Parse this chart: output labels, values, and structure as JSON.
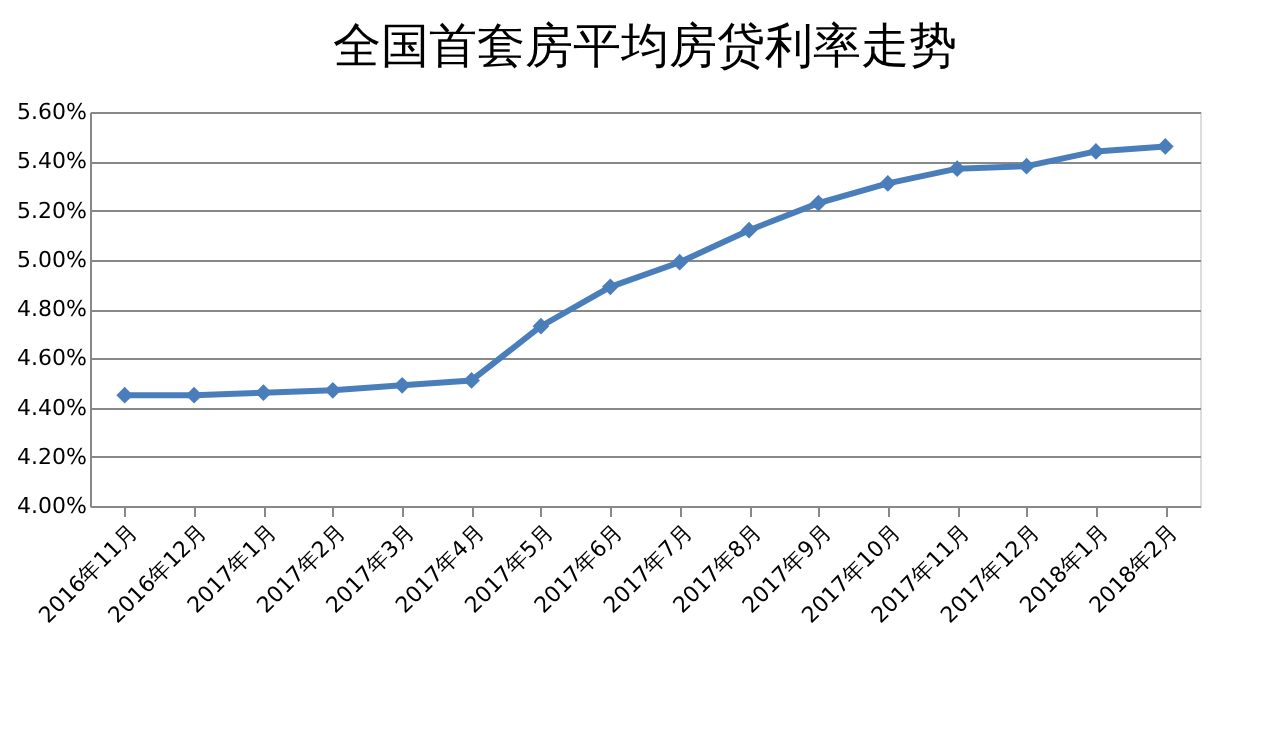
{
  "chart_data": {
    "type": "line",
    "title": "全国首套房平均房贷利率走势",
    "categories": [
      "2016年11月",
      "2016年12月",
      "2017年1月",
      "2017年2月",
      "2017年3月",
      "2017年4月",
      "2017年5月",
      "2017年6月",
      "2017年7月",
      "2017年8月",
      "2017年9月",
      "2017年10月",
      "2017年11月",
      "2017年12月",
      "2018年1月",
      "2018年2月"
    ],
    "series": [
      {
        "color": "#4a7ebb",
        "values": [
          4.45,
          4.45,
          4.46,
          4.47,
          4.49,
          4.51,
          4.73,
          4.89,
          4.99,
          5.12,
          5.23,
          5.31,
          5.37,
          5.38,
          5.44,
          5.46
        ]
      }
    ],
    "ylim": [
      4.0,
      5.6
    ],
    "yticks": [
      {
        "value": 4.0,
        "label": "4.00%"
      },
      {
        "value": 4.2,
        "label": "4.20%"
      },
      {
        "value": 4.4,
        "label": "4.40%"
      },
      {
        "value": 4.6,
        "label": "4.60%"
      },
      {
        "value": 4.8,
        "label": "4.80%"
      },
      {
        "value": 5.0,
        "label": "5.00%"
      },
      {
        "value": 5.2,
        "label": "5.20%"
      },
      {
        "value": 5.4,
        "label": "5.40%"
      },
      {
        "value": 5.6,
        "label": "5.60%"
      }
    ],
    "grid": "y",
    "legend": false,
    "marker": "diamond",
    "line_style": "solid"
  }
}
